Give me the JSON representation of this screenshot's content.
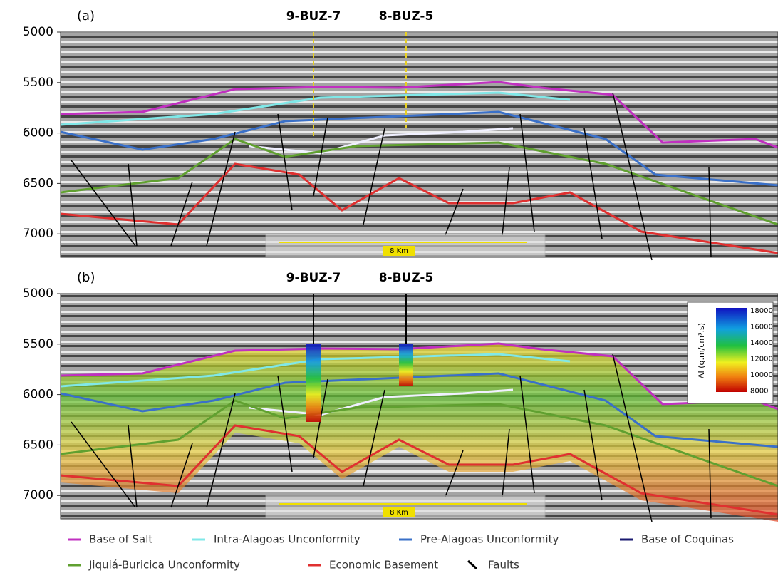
{
  "panels": [
    {
      "label": "(a)",
      "wells": [
        "9-BUZ-7",
        "8-BUZ-5"
      ],
      "scale": "8 Km"
    },
    {
      "label": "(b)",
      "wells": [
        "9-BUZ-7",
        "8-BUZ-5"
      ],
      "scale": "8 Km"
    }
  ],
  "yticks": [
    5000,
    5500,
    6000,
    6500,
    7000
  ],
  "colorbar": {
    "label": "AI (g.m/cm³.s)",
    "ticks": [
      18000,
      16000,
      14000,
      12000,
      10000,
      8000
    ]
  },
  "legend": [
    "Base of Salt",
    "Intra-Alagoas Unconformity",
    "Pre-Alagoas Unconformity",
    "Base of Coquinas",
    "Jiquiá-Buricica Unconformity",
    "Economic Basement",
    "Faults"
  ]
}
